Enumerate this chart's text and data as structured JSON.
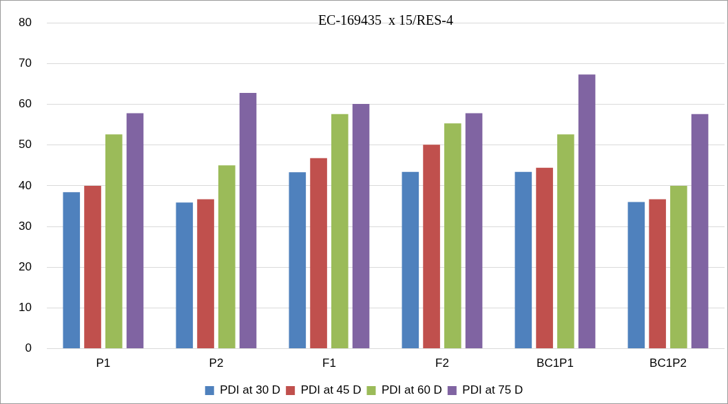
{
  "chart_data": {
    "type": "bar",
    "title": "EC-169435  x 15/RES-4",
    "categories": [
      "P1",
      "P2",
      "F1",
      "F2",
      "BC1P1",
      "BC1P2"
    ],
    "series": [
      {
        "name": "PDI at 30 D",
        "color": "#4f81bd",
        "values": [
          38.4,
          35.9,
          43.3,
          43.4,
          43.4,
          36
        ]
      },
      {
        "name": "PDI at 45 D",
        "color": "#c0504d",
        "values": [
          40,
          36.7,
          46.8,
          50.1,
          44.4,
          36.7
        ]
      },
      {
        "name": "PDI at 60 D",
        "color": "#9bbb59",
        "values": [
          52.6,
          45,
          57.6,
          55.3,
          52.6,
          40
        ]
      },
      {
        "name": "PDI at 75 D",
        "color": "#8064a2",
        "values": [
          57.8,
          62.8,
          60.1,
          57.8,
          67.3,
          57.6
        ]
      }
    ],
    "ylim": [
      0,
      80
    ],
    "yticks": [
      0,
      10,
      20,
      30,
      40,
      50,
      60,
      70,
      80
    ],
    "grid": "y",
    "legend": "bottom"
  }
}
